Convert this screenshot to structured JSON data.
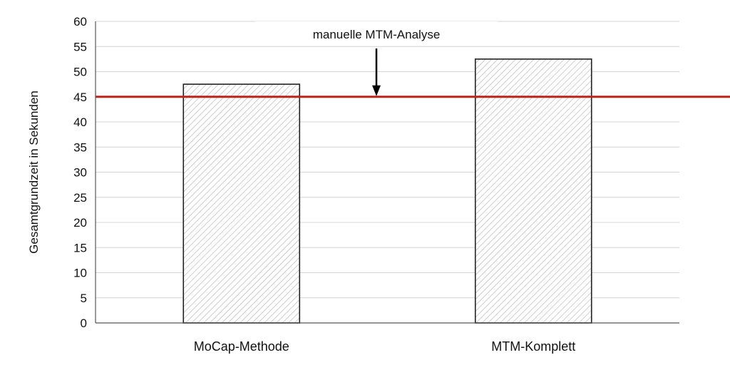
{
  "chart_data": {
    "type": "bar",
    "categories": [
      "MoCap-Methode",
      "MTM-Komplett"
    ],
    "values": [
      47.5,
      52.5
    ],
    "xlabel": "",
    "ylabel": "Gesamtgrundzeit in Sekunden",
    "ylim": [
      0,
      60
    ],
    "ytick_step": 5,
    "grid": true,
    "bar_fill": "hatched",
    "reference_line": {
      "value": 45,
      "color": "#c0221b"
    },
    "annotation": {
      "text": "manuelle MTM-Analyse",
      "points_to": 45
    }
  }
}
